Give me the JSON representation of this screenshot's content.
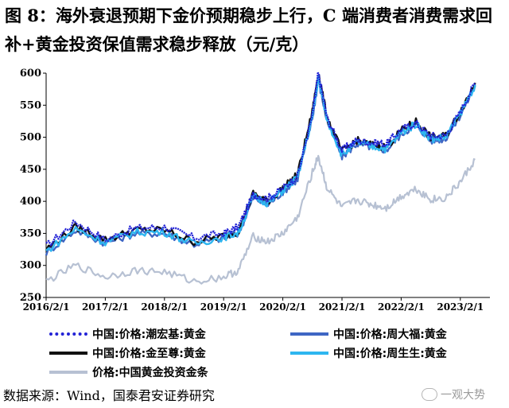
{
  "title": "图 8：海外衰退预期下金价预期稳步上行，C 端消费者消费需求回补+黄金投资保值需求稳步释放（元/克）",
  "source": "数据来源：Wind，国泰君安证券研究",
  "watermark": "一观大势",
  "colors": {
    "chow_tai_seng": "#2323d6",
    "chow_tai_fook": "#3e66c4",
    "chow_tai_chi": "#111111",
    "chow_sang_sang": "#2eb6f0",
    "gold_bar": "#b7c1d3"
  },
  "chart_data": {
    "type": "line",
    "xlabel": "",
    "ylabel": "",
    "ylim": [
      250,
      600
    ],
    "yticks": [
      250,
      300,
      350,
      400,
      450,
      500,
      550,
      600
    ],
    "xticks": [
      "2016/2/1",
      "2017/2/1",
      "2018/2/1",
      "2019/2/1",
      "2020/2/1",
      "2021/2/1",
      "2022/2/1",
      "2023/2/1"
    ],
    "x_anchor_years": [
      2016.0,
      2016.5,
      2017.0,
      2017.5,
      2018.0,
      2018.5,
      2019.0,
      2019.25,
      2019.5,
      2019.75,
      2020.0,
      2020.25,
      2020.5,
      2020.6,
      2020.75,
      2021.0,
      2021.25,
      2021.5,
      2021.75,
      2022.0,
      2022.25,
      2022.5,
      2022.75,
      2023.0,
      2023.25
    ],
    "series": [
      {
        "name": "中国:价格:潮宏基:黄金",
        "key": "chow_tai_seng",
        "values": [
          330,
          368,
          340,
          358,
          360,
          343,
          350,
          360,
          410,
          405,
          420,
          440,
          535,
          600,
          530,
          480,
          495,
          492,
          490,
          512,
          522,
          502,
          502,
          540,
          585
        ]
      },
      {
        "name": "中国:价格:周大福:黄金",
        "key": "chow_tai_fook",
        "values": [
          320,
          355,
          335,
          350,
          350,
          333,
          343,
          350,
          405,
          395,
          415,
          435,
          530,
          590,
          525,
          470,
          490,
          485,
          480,
          505,
          520,
          495,
          498,
          535,
          580
        ]
      },
      {
        "name": "中国:价格:金至尊:黄金",
        "key": "chow_tai_chi",
        "values": [
          325,
          360,
          340,
          355,
          355,
          337,
          346,
          353,
          412,
          400,
          420,
          442,
          540,
          600,
          530,
          478,
          495,
          488,
          485,
          510,
          525,
          500,
          502,
          540,
          585
        ]
      },
      {
        "name": "中国:价格:周生生:黄金",
        "key": "chow_sang_sang",
        "values": [
          322,
          357,
          336,
          352,
          352,
          334,
          344,
          351,
          408,
          397,
          417,
          437,
          532,
          592,
          527,
          472,
          492,
          486,
          482,
          507,
          521,
          497,
          500,
          537,
          582
        ]
      },
      {
        "name": "价格:中国黄金投资金条",
        "key": "gold_bar",
        "values": [
          275,
          300,
          282,
          292,
          290,
          275,
          282,
          292,
          345,
          337,
          350,
          375,
          445,
          470,
          420,
          390,
          402,
          395,
          390,
          408,
          420,
          403,
          405,
          430,
          465
        ]
      }
    ]
  },
  "legend": [
    {
      "label": "中国:价格:潮宏基:黄金",
      "key": "chow_tai_seng"
    },
    {
      "label": "中国:价格:周大福:黄金",
      "key": "chow_tai_fook"
    },
    {
      "label": "中国:价格:金至尊:黄金",
      "key": "chow_tai_chi"
    },
    {
      "label": "中国:价格:周生生:黄金",
      "key": "chow_sang_sang"
    },
    {
      "label": "价格:中国黄金投资金条",
      "key": "gold_bar"
    }
  ]
}
